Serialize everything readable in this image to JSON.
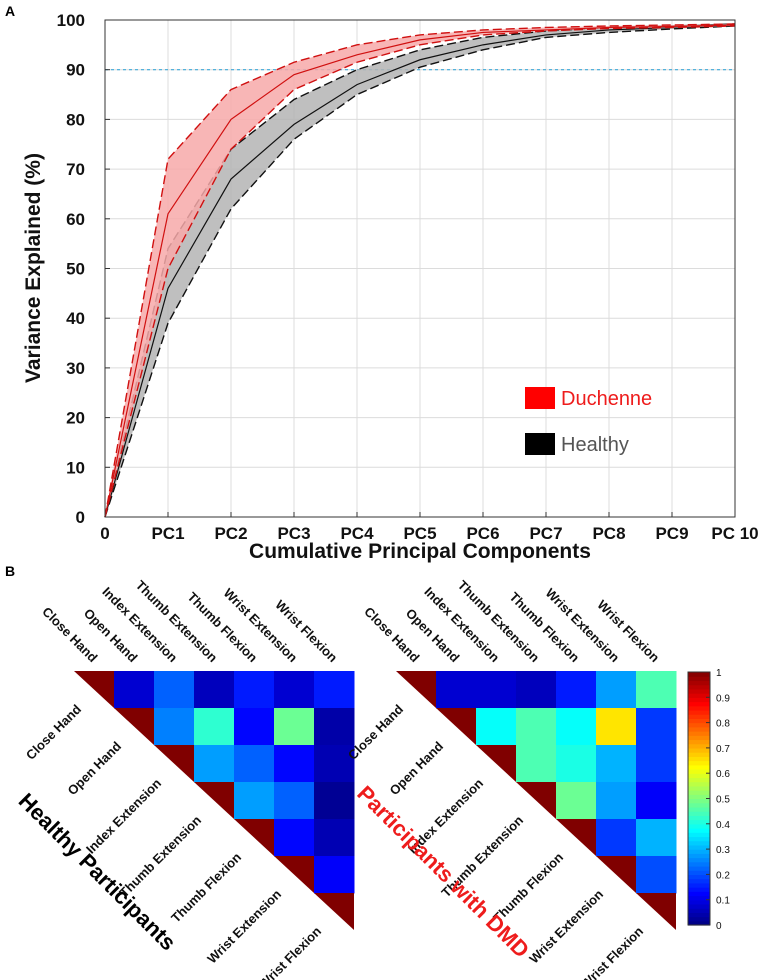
{
  "panels": {
    "a_letter": "A",
    "b_letter": "B"
  },
  "chart_data": [
    {
      "type": "line",
      "title": "",
      "xlabel": "Cumulative Principal Components",
      "ylabel": "Variance Explained (%)",
      "x_ticks": [
        "0",
        "PC1",
        "PC2",
        "PC3",
        "PC4",
        "PC5",
        "PC6",
        "PC7",
        "PC8",
        "PC9",
        "PC 10"
      ],
      "y_ticks": [
        "0",
        "10",
        "20",
        "30",
        "40",
        "50",
        "60",
        "70",
        "80",
        "90",
        "100"
      ],
      "xlim": [
        0,
        10
      ],
      "ylim": [
        0,
        100
      ],
      "grid": true,
      "reference_line": {
        "y": 90,
        "color": "#3fa9d9",
        "style": "dotted"
      },
      "legend": {
        "position": "bottom-right"
      },
      "series": [
        {
          "name": "Duchenne",
          "fill": "#f7a9a9",
          "legend_swatch": "#ff0000",
          "label_color": "#ee1c1c",
          "line": "#d01010",
          "x": [
            0,
            1,
            2,
            3,
            4,
            5,
            6,
            7,
            8,
            9,
            10
          ],
          "mean": [
            0,
            61,
            80,
            89,
            93,
            96,
            97.5,
            98,
            98.5,
            98.7,
            99
          ],
          "upper": [
            0,
            72,
            86,
            91.5,
            95,
            97,
            98,
            98.5,
            98.8,
            99,
            99.2
          ],
          "lower": [
            0,
            50,
            74,
            86,
            91.5,
            95,
            97,
            97.8,
            98.3,
            98.5,
            98.8
          ]
        },
        {
          "name": "Healthy",
          "fill": "#b4b4b4",
          "legend_swatch": "#000000",
          "label_color": "#555555",
          "line": "#111111",
          "x": [
            0,
            1,
            2,
            3,
            4,
            5,
            6,
            7,
            8,
            9,
            10
          ],
          "mean": [
            0,
            46,
            68,
            79,
            87,
            92,
            95,
            97,
            98,
            98.5,
            99
          ],
          "upper": [
            0,
            54,
            74,
            84,
            90,
            94,
            96.5,
            97.8,
            98.5,
            98.8,
            99.2
          ],
          "lower": [
            0,
            39,
            62,
            76,
            85,
            90.5,
            94,
            96.5,
            97.5,
            98.2,
            98.8
          ]
        }
      ]
    },
    {
      "type": "heatmap",
      "title": "Healthy Participants",
      "title_color": "#000000",
      "labels": [
        "Close Hand",
        "Open Hand",
        "Index Extension",
        "Thumb Extension",
        "Thumb Flexion",
        "Wrist Extension",
        "Wrist Flexion"
      ],
      "upper_triangle": [
        [
          0.08,
          0.22,
          0.06,
          0.15,
          0.08,
          0.15
        ],
        [
          0.25,
          0.42,
          0.13,
          0.48,
          0.04
        ],
        [
          0.28,
          0.22,
          0.13,
          0.05
        ],
        [
          0.28,
          0.22,
          0.02
        ],
        [
          0.13,
          0.05
        ],
        [
          0.12
        ]
      ],
      "diagonal_color": "#800000"
    },
    {
      "type": "heatmap",
      "title": "Participants with DMD",
      "title_color": "#ee1c1c",
      "labels": [
        "Close Hand",
        "Open Hand",
        "Index Extension",
        "Thumb Extension",
        "Thumb Flexion",
        "Wrist Extension",
        "Wrist Flexion"
      ],
      "upper_triangle": [
        [
          0.08,
          0.08,
          0.06,
          0.15,
          0.28,
          0.45
        ],
        [
          0.38,
          0.45,
          0.38,
          0.65,
          0.18
        ],
        [
          0.45,
          0.4,
          0.3,
          0.18
        ],
        [
          0.48,
          0.28,
          0.12
        ],
        [
          0.18,
          0.3
        ],
        [
          0.2
        ]
      ],
      "diagonal_color": "#800000"
    },
    {
      "type": "colorbar",
      "colormap": "jet",
      "range": [
        0,
        1
      ],
      "tick_labels": [
        "0",
        "0.1",
        "0.2",
        "0.3",
        "0.4",
        "0.5",
        "0.6",
        "0.7",
        "0.8",
        "0.9",
        "1"
      ]
    }
  ]
}
